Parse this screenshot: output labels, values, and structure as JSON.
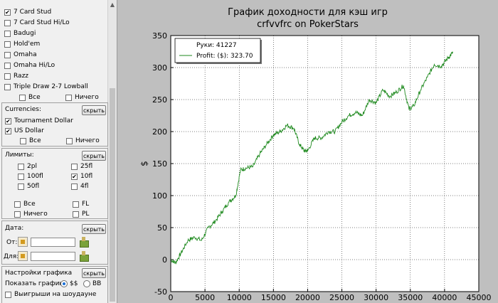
{
  "filters": {
    "games": [
      {
        "label": "7 Card Stud",
        "checked": true
      },
      {
        "label": "7 Card Stud Hi/Lo",
        "checked": false
      },
      {
        "label": "Badugi",
        "checked": false
      },
      {
        "label": "Hold'em",
        "checked": false
      },
      {
        "label": "Omaha",
        "checked": false
      },
      {
        "label": "Omaha Hi/Lo",
        "checked": false
      },
      {
        "label": "Razz",
        "checked": false
      },
      {
        "label": "Triple Draw 2-7 Lowball",
        "checked": false
      }
    ],
    "games_all": "Все",
    "games_none": "Ничего"
  },
  "currencies": {
    "title": "Currencies:",
    "hide_label": "скрыть",
    "items": [
      {
        "label": "Tournament Dollar",
        "checked": true
      },
      {
        "label": "US Dollar",
        "checked": true
      }
    ],
    "all": "Все",
    "none": "Ничего"
  },
  "limits": {
    "title": "Лимиты:",
    "hide_label": "скрыть",
    "items": [
      {
        "label": "2pl",
        "checked": false
      },
      {
        "label": "25fl",
        "checked": false
      },
      {
        "label": "100fl",
        "checked": false
      },
      {
        "label": "10fl",
        "checked": true
      },
      {
        "label": "50fl",
        "checked": false
      },
      {
        "label": "4fl",
        "checked": false
      }
    ],
    "all": "Все",
    "fl": "FL",
    "none": "Ничего",
    "pl": "PL"
  },
  "dates": {
    "title": "Дата:",
    "hide_label": "скрыть",
    "from_label": "От:",
    "to_label": "Для:",
    "from_value": "",
    "to_value": ""
  },
  "graph_settings": {
    "title": "Настройки графика",
    "hide_label": "скрыть",
    "show_label": "Показать график:",
    "opt1": "$$",
    "opt2": "BB",
    "opt_selected": "$$",
    "winnings_label": "Выигрыши на шоудауне"
  },
  "chart_data": {
    "type": "line",
    "title": "График доходности для кэш игр",
    "subtitle": "crfvvfrc on PokerStars",
    "xlabel": "",
    "ylabel": "$",
    "xlim": [
      0,
      45000
    ],
    "ylim": [
      -50,
      350
    ],
    "xticks": [
      "0",
      "5000",
      "10000",
      "15000",
      "20000",
      "25000",
      "30000",
      "35000",
      "40000",
      "45000"
    ],
    "yticks": [
      "-50",
      "0",
      "50",
      "100",
      "150",
      "200",
      "250",
      "300",
      "350"
    ],
    "grid": true,
    "legend_position": "top-left",
    "legend": {
      "line1": "Руки: 41227",
      "line2": "Profit: ($): 323.70"
    },
    "series_color": "#1f8a1f",
    "series": [
      {
        "name": "Profit: ($): 323.70",
        "x": [
          0,
          700,
          1500,
          2500,
          3500,
          4500,
          5500,
          6500,
          7500,
          8500,
          9500,
          10200,
          11000,
          12000,
          13000,
          14000,
          15000,
          16000,
          17000,
          18000,
          18800,
          19500,
          20000,
          21000,
          22000,
          23000,
          24000,
          25000,
          26000,
          27000,
          28000,
          29000,
          30000,
          31000,
          32000,
          33000,
          34000,
          34800,
          35500,
          36500,
          37500,
          38500,
          39500,
          40500,
          41227
        ],
        "y": [
          0,
          -5,
          10,
          30,
          35,
          30,
          50,
          60,
          75,
          90,
          100,
          140,
          143,
          145,
          165,
          180,
          195,
          200,
          210,
          205,
          180,
          170,
          170,
          190,
          190,
          200,
          200,
          215,
          225,
          230,
          225,
          250,
          245,
          265,
          255,
          262,
          272,
          235,
          240,
          265,
          285,
          305,
          302,
          315,
          323.7
        ]
      }
    ]
  }
}
